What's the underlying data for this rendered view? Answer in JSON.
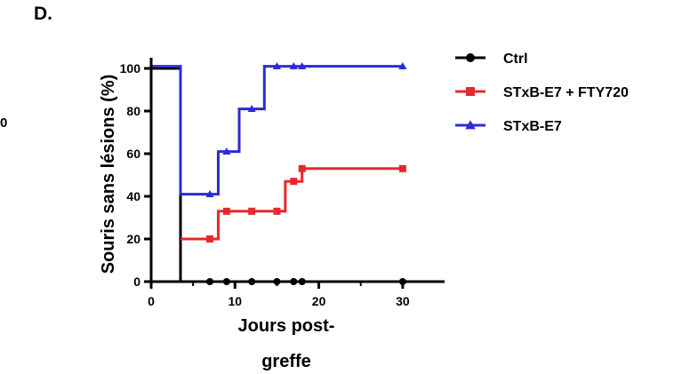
{
  "panel_label": "D.",
  "edge_fragment": "0",
  "colors": {
    "ctrl": "#000000",
    "fty": "#e8282b",
    "e7": "#2b2bd9",
    "axis": "#000000"
  },
  "chart_data": {
    "type": "line",
    "step": true,
    "xlabel_lines": [
      "Jours post-",
      "greffe"
    ],
    "ylabel": "Souris sans lésions (%)",
    "xlim": [
      0,
      35
    ],
    "ylim": [
      0,
      105
    ],
    "xticks": [
      0,
      10,
      20,
      30
    ],
    "yticks": [
      0,
      20,
      40,
      60,
      80,
      100
    ],
    "grid": false,
    "legend_position": "right",
    "series": [
      {
        "name": "Ctrl",
        "color": "#000000",
        "marker": "circle",
        "x": [
          0,
          3.5,
          7,
          9,
          12,
          15,
          17,
          18,
          30
        ],
        "y": [
          100,
          0,
          0,
          0,
          0,
          0,
          0,
          0,
          0
        ],
        "markers_x": [
          7,
          9,
          12,
          15,
          17,
          18,
          30
        ]
      },
      {
        "name": "STxB-E7 + FTY720",
        "color": "#e8282b",
        "marker": "square",
        "x": [
          3.5,
          7,
          8,
          9,
          12,
          15,
          16,
          17,
          18,
          30
        ],
        "y": [
          20,
          20,
          33,
          33,
          33,
          33,
          47,
          47,
          53,
          53
        ],
        "markers_x": [
          7,
          9,
          12,
          15,
          17,
          18,
          30
        ]
      },
      {
        "name": "STxB-E7",
        "color": "#2b2bd9",
        "marker": "triangle",
        "x": [
          0,
          3.5,
          7,
          8,
          9,
          10.5,
          12,
          13.5,
          15,
          17,
          18,
          30
        ],
        "y": [
          101,
          41,
          41,
          61,
          61,
          81,
          81,
          101,
          101,
          101,
          101,
          101
        ],
        "markers_x": [
          7,
          9,
          12,
          15,
          17,
          18,
          30
        ]
      }
    ]
  }
}
